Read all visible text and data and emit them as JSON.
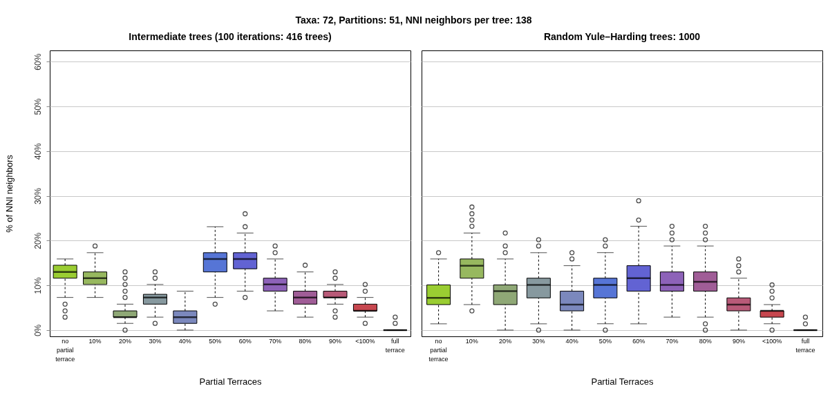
{
  "chart_data": [
    {
      "type": "box",
      "title": "Intermediate trees (100 iterations: 416 trees)",
      "annotations": [
        "Taxa: 72, Partitions: 51, NNI neighbors per tree: 138"
      ],
      "xlabel": "Partial Terraces",
      "ylabel": "% of NNI neighbors",
      "categories": [
        "no partial terrace",
        "10%",
        "20%",
        "30%",
        "40%",
        "50%",
        "60%",
        "70%",
        "80%",
        "90%",
        "<100%",
        "full terrace"
      ],
      "colors": [
        "#9acd32",
        "#97b85f",
        "#8fa876",
        "#87999f",
        "#7b88bd",
        "#5675d6",
        "#6263d3",
        "#8d62b8",
        "#a05d97",
        "#b85a78",
        "#c7474f",
        "#000000"
      ],
      "boxes": [
        {
          "low": 7.3,
          "q1": 11.6,
          "median": 13.0,
          "q3": 14.5,
          "high": 15.9,
          "outliers": [
            5.8,
            4.3,
            2.9
          ]
        },
        {
          "low": 7.3,
          "q1": 10.2,
          "median": 11.6,
          "q3": 13.0,
          "high": 17.3,
          "outliers": [
            18.8
          ]
        },
        {
          "low": 1.5,
          "q1": 2.9,
          "median": 2.9,
          "q3": 4.3,
          "high": 5.8,
          "outliers": [
            13.0,
            11.6,
            10.2,
            8.7,
            7.3,
            0
          ]
        },
        {
          "low": 2.9,
          "q1": 5.8,
          "median": 7.3,
          "q3": 8.0,
          "high": 10.2,
          "outliers": [
            13.0,
            11.6,
            1.5
          ]
        },
        {
          "low": 0,
          "q1": 1.5,
          "median": 2.9,
          "q3": 4.3,
          "high": 8.7
        },
        {
          "low": 7.3,
          "q1": 13.0,
          "median": 15.9,
          "q3": 17.3,
          "high": 23.1,
          "outliers": [
            5.8
          ]
        },
        {
          "low": 8.7,
          "q1": 13.7,
          "median": 15.9,
          "q3": 17.3,
          "high": 21.7,
          "outliers": [
            26.0,
            23.1,
            7.3
          ]
        },
        {
          "low": 4.3,
          "q1": 8.7,
          "median": 10.2,
          "q3": 11.6,
          "high": 15.9,
          "outliers": [
            18.8,
            17.3
          ]
        },
        {
          "low": 2.9,
          "q1": 5.8,
          "median": 7.3,
          "q3": 8.7,
          "high": 13.0,
          "outliers": [
            14.5
          ]
        },
        {
          "low": 5.8,
          "q1": 7.3,
          "median": 7.3,
          "q3": 8.7,
          "high": 10.2,
          "outliers": [
            13.0,
            11.6,
            4.3,
            2.9
          ]
        },
        {
          "low": 2.9,
          "q1": 4.3,
          "median": 4.3,
          "q3": 5.8,
          "high": 7.3,
          "outliers": [
            10.2,
            8.7,
            1.5
          ]
        },
        {
          "low": 0,
          "q1": 0,
          "median": 0,
          "q3": 0,
          "high": 0,
          "outliers": [
            2.9,
            1.5
          ]
        }
      ],
      "ylim": [
        -1.4,
        62.5
      ],
      "yticks": [
        {
          "value": 0,
          "label": "0%"
        },
        {
          "value": 10,
          "label": "10%"
        },
        {
          "value": 20,
          "label": "20%"
        },
        {
          "value": 30,
          "label": "30%"
        },
        {
          "value": 40,
          "label": "40%"
        },
        {
          "value": 50,
          "label": "50%"
        },
        {
          "value": 60,
          "label": "60%"
        }
      ],
      "grid": "y"
    },
    {
      "type": "box",
      "title": "Random Yule–Harding trees: 1000",
      "xlabel": "Partial Terraces",
      "categories": [
        "no partial terrace",
        "10%",
        "20%",
        "30%",
        "40%",
        "50%",
        "60%",
        "70%",
        "80%",
        "90%",
        "<100%",
        "full terrace"
      ],
      "colors": [
        "#9acd32",
        "#97b85f",
        "#8fa876",
        "#87999f",
        "#7b88bd",
        "#5675d6",
        "#6263d3",
        "#8d62b8",
        "#a05d97",
        "#b85a78",
        "#c7474f",
        "#000000"
      ],
      "boxes": [
        {
          "low": 1.4,
          "q1": 5.7,
          "median": 7.2,
          "q3": 10.1,
          "high": 15.9,
          "outliers": [
            17.3
          ]
        },
        {
          "low": 5.7,
          "q1": 11.6,
          "median": 14.4,
          "q3": 15.9,
          "high": 21.7,
          "outliers": [
            27.5,
            26.0,
            24.6,
            23.2,
            4.3
          ]
        },
        {
          "low": 0,
          "q1": 5.7,
          "median": 8.7,
          "q3": 10.1,
          "high": 15.9,
          "outliers": [
            21.7,
            18.8,
            17.3
          ]
        },
        {
          "low": 1.4,
          "q1": 7.2,
          "median": 10.1,
          "q3": 11.6,
          "high": 17.3,
          "outliers": [
            20.2,
            18.8,
            0
          ]
        },
        {
          "low": 0,
          "q1": 4.3,
          "median": 5.7,
          "q3": 8.7,
          "high": 14.4,
          "outliers": [
            17.3,
            15.9
          ]
        },
        {
          "low": 1.4,
          "q1": 7.2,
          "median": 10.1,
          "q3": 11.6,
          "high": 17.3,
          "outliers": [
            20.2,
            18.8,
            0
          ]
        },
        {
          "low": 1.4,
          "q1": 8.7,
          "median": 11.6,
          "q3": 14.4,
          "high": 23.2,
          "outliers": [
            28.9,
            24.6
          ]
        },
        {
          "low": 2.9,
          "q1": 8.7,
          "median": 10.1,
          "q3": 13.0,
          "high": 18.8,
          "outliers": [
            23.2,
            21.7,
            20.2
          ]
        },
        {
          "low": 2.9,
          "q1": 8.7,
          "median": 10.8,
          "q3": 13.0,
          "high": 18.8,
          "outliers": [
            23.2,
            21.7,
            20.2,
            1.4,
            0
          ]
        },
        {
          "low": 0,
          "q1": 4.3,
          "median": 5.7,
          "q3": 7.2,
          "high": 11.6,
          "outliers": [
            15.9,
            14.4,
            13.0
          ]
        },
        {
          "low": 1.4,
          "q1": 2.9,
          "median": 4.3,
          "q3": 4.3,
          "high": 5.7,
          "outliers": [
            10.1,
            8.7,
            7.2,
            0
          ]
        },
        {
          "low": 0,
          "q1": 0,
          "median": 0,
          "q3": 0,
          "high": 0,
          "outliers": [
            2.9,
            1.4
          ]
        }
      ],
      "ylim": [
        -1.4,
        62.5
      ],
      "yticks": [
        0,
        10,
        20,
        30,
        40,
        50,
        60
      ],
      "tick_labels": "x",
      "grid": "y"
    }
  ]
}
